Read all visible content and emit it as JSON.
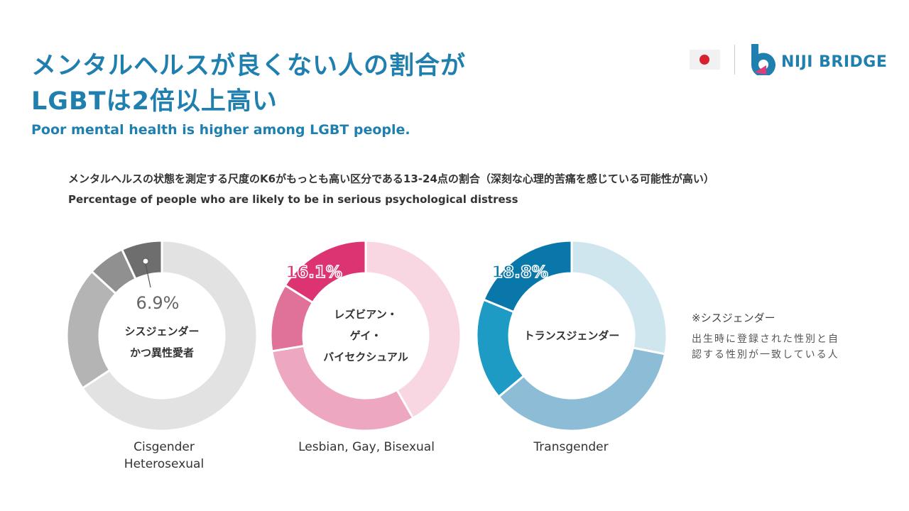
{
  "header": {
    "title_line1": "メンタルヘルスが良くない人の割合が",
    "title_line2": "LGBTは2倍以上高い",
    "subtitle": "Poor mental health is higher among LGBT people.",
    "brand": "NIJI BRIDGE",
    "flag": "japan-flag",
    "title_color": "#1f7fae"
  },
  "description": {
    "jp": "メンタルヘルスの状態を測定する尺度のK6がもっとも高い区分である13-24点の割合（深刻な心理的苦痛を感じている可能性が高い）",
    "en": "Percentage of people who are likely to be in serious psychological distress"
  },
  "note": {
    "title": "※シスジェンダー",
    "body": "出生時に登録された性別と自認する性別が一致している人"
  },
  "chart_data": [
    {
      "type": "pie",
      "donut": true,
      "center_label": [
        "シスジェンダー",
        "かつ異性愛者"
      ],
      "category": [
        "Cisgender",
        "Heterosexual"
      ],
      "values": [
        65.7,
        21.1,
        6.3,
        6.9
      ],
      "highlight_label": "6.9%",
      "colors": [
        "#e2e2e2",
        "#b4b4b4",
        "#909090",
        "#6e6e6e"
      ],
      "label_color": "#666666"
    },
    {
      "type": "pie",
      "donut": true,
      "center_label": [
        "レズビアン・",
        "ゲイ・",
        "バイセクシュアル"
      ],
      "category": [
        "Lesbian, Gay, Bisexual"
      ],
      "values": [
        41.7,
        30.7,
        11.5,
        16.1
      ],
      "highlight_label": "16.1%",
      "colors": [
        "#f8d7e3",
        "#eea7c0",
        "#e07199",
        "#dc3472"
      ],
      "label_color": "#dc3472"
    },
    {
      "type": "pie",
      "donut": true,
      "center_label": [
        "トランスジェンダー"
      ],
      "category": [
        "Transgender"
      ],
      "values": [
        28.1,
        35.8,
        17.3,
        18.8
      ],
      "highlight_label": "18.8%",
      "colors": [
        "#d0e6ef",
        "#8dbdd6",
        "#1e9bc4",
        "#0a77ab"
      ],
      "label_color": "#0a77ab"
    }
  ]
}
